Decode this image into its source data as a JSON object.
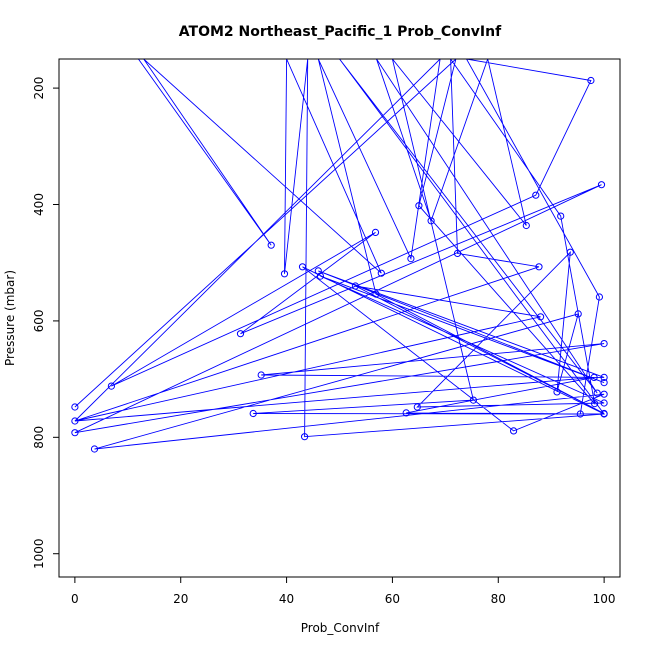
{
  "chart_data": {
    "type": "line",
    "title": "ATOM2 Northeast_Pacific_1 Prob_ConvInf",
    "xlabel": "Prob_ConvInf",
    "ylabel": "Pressure (mbar)",
    "xlim": [
      -3,
      103
    ],
    "ylim": [
      1040,
      150
    ],
    "y_reversed": true,
    "x_ticks": [
      0,
      20,
      40,
      60,
      80,
      100
    ],
    "y_ticks": [
      200,
      400,
      600,
      800,
      1000
    ],
    "grid": false,
    "series": [
      {
        "line_color": "#0000ff",
        "marker": "open-circle",
        "points": [
          [
            0,
            748
          ],
          [
            0,
            772
          ],
          [
            0,
            792
          ],
          [
            3.7,
            820
          ],
          [
            6.9,
            712
          ],
          [
            31.3,
            622
          ],
          [
            33.7,
            759
          ],
          [
            35.2,
            693
          ],
          [
            37.1,
            470
          ],
          [
            39.6,
            519
          ],
          [
            43.0,
            507
          ],
          [
            43.4,
            799
          ],
          [
            46.0,
            514
          ],
          [
            46.4,
            523
          ],
          [
            53.0,
            540
          ],
          [
            56.8,
            448
          ],
          [
            56.9,
            554
          ],
          [
            57.9,
            518
          ],
          [
            62.6,
            758
          ],
          [
            63.5,
            493
          ],
          [
            64.7,
            748
          ],
          [
            65.0,
            402
          ],
          [
            67.3,
            428
          ],
          [
            72.3,
            484
          ],
          [
            75.3,
            736
          ],
          [
            82.9,
            789
          ],
          [
            85.3,
            436
          ],
          [
            87.1,
            384
          ],
          [
            87.7,
            507
          ],
          [
            88.0,
            593
          ],
          [
            91.1,
            722
          ],
          [
            91.8,
            420
          ],
          [
            93.6,
            482
          ],
          [
            95.1,
            588
          ],
          [
            95.5,
            760
          ],
          [
            97.5,
            187
          ],
          [
            98.1,
            697
          ],
          [
            98.2,
            742
          ],
          [
            98.7,
            724
          ],
          [
            99.1,
            559
          ],
          [
            99.5,
            366
          ],
          [
            100,
            639
          ],
          [
            100,
            697
          ],
          [
            100,
            706
          ],
          [
            100,
            726
          ],
          [
            100,
            741
          ],
          [
            100,
            759
          ],
          [
            100,
            760
          ]
        ],
        "path": [
          [
            12,
            150
          ],
          [
            37.1,
            470
          ],
          [
            13,
            150
          ],
          [
            57.9,
            518
          ],
          [
            40,
            150
          ],
          [
            39.6,
            519
          ],
          [
            44,
            150
          ],
          [
            43.4,
            799
          ],
          [
            100,
            760
          ],
          [
            50,
            150
          ],
          [
            98.7,
            724
          ],
          [
            57,
            150
          ],
          [
            67.3,
            428
          ],
          [
            78,
            150
          ],
          [
            85.3,
            436
          ],
          [
            60,
            150
          ],
          [
            75.3,
            736
          ],
          [
            33.7,
            759
          ],
          [
            95.5,
            760
          ],
          [
            99.1,
            559
          ],
          [
            74,
            150
          ],
          [
            97.5,
            187
          ],
          [
            87.1,
            384
          ],
          [
            6.9,
            712
          ],
          [
            56.8,
            448
          ],
          [
            31.3,
            622
          ],
          [
            99.5,
            366
          ],
          [
            0,
            792
          ],
          [
            100,
            639
          ],
          [
            35.2,
            693
          ],
          [
            100,
            697
          ],
          [
            46.0,
            514
          ],
          [
            100,
            706
          ],
          [
            46.4,
            523
          ],
          [
            100,
            741
          ],
          [
            64.7,
            748
          ],
          [
            93.6,
            482
          ],
          [
            91.1,
            722
          ],
          [
            95.1,
            588
          ],
          [
            3.7,
            820
          ],
          [
            100,
            726
          ],
          [
            82.9,
            789
          ],
          [
            43.0,
            507
          ],
          [
            100,
            760
          ],
          [
            62.6,
            758
          ],
          [
            98.1,
            697
          ],
          [
            0,
            772
          ],
          [
            88.0,
            593
          ],
          [
            53.0,
            540
          ],
          [
            100,
            759
          ],
          [
            56.9,
            554
          ],
          [
            46,
            150
          ],
          [
            63.5,
            493
          ],
          [
            69,
            150
          ],
          [
            0,
            772
          ],
          [
            87.7,
            507
          ],
          [
            72.3,
            484
          ],
          [
            71,
            150
          ],
          [
            91.8,
            420
          ],
          [
            98.2,
            742
          ],
          [
            65.0,
            402
          ],
          [
            72,
            150
          ],
          [
            0,
            748
          ]
        ]
      }
    ]
  }
}
